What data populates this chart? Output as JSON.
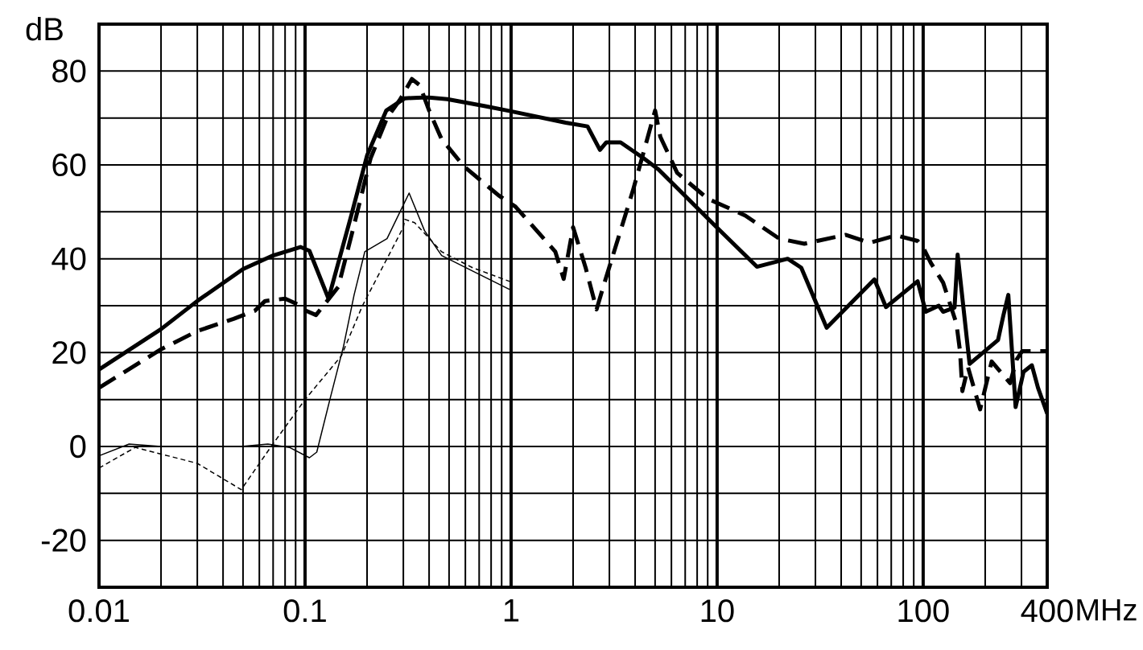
{
  "chart_data": {
    "type": "line",
    "ylabel": "dB",
    "xlabel": "MHz",
    "log": "x",
    "grid": true,
    "xlim": [
      0.01,
      400
    ],
    "ylim": [
      -30,
      90
    ],
    "xticks": [
      0.01,
      {
        "value": 0.02,
        "label": null
      },
      {
        "value": 0.03,
        "label": null
      },
      {
        "value": 0.04,
        "label": null
      },
      {
        "value": 0.05,
        "label": null
      },
      {
        "value": 0.06,
        "label": null
      },
      {
        "value": 0.07,
        "label": null
      },
      {
        "value": 0.08,
        "label": null
      },
      {
        "value": 0.09,
        "label": null
      },
      0.1,
      {
        "value": 0.2,
        "label": null
      },
      {
        "value": 0.3,
        "label": null
      },
      {
        "value": 0.4,
        "label": null
      },
      {
        "value": 0.5,
        "label": null
      },
      {
        "value": 0.6,
        "label": null
      },
      {
        "value": 0.7,
        "label": null
      },
      {
        "value": 0.8,
        "label": null
      },
      {
        "value": 0.9,
        "label": null
      },
      1,
      {
        "value": 2,
        "label": null
      },
      {
        "value": 3,
        "label": null
      },
      {
        "value": 4,
        "label": null
      },
      {
        "value": 5,
        "label": null
      },
      {
        "value": 6,
        "label": null
      },
      {
        "value": 7,
        "label": null
      },
      {
        "value": 8,
        "label": null
      },
      {
        "value": 9,
        "label": null
      },
      10,
      {
        "value": 20,
        "label": null
      },
      {
        "value": 30,
        "label": null
      },
      {
        "value": 40,
        "label": null
      },
      {
        "value": 50,
        "label": null
      },
      {
        "value": 60,
        "label": null
      },
      {
        "value": 70,
        "label": null
      },
      {
        "value": 80,
        "label": null
      },
      {
        "value": 90,
        "label": null
      },
      100,
      {
        "value": 200,
        "label": null
      },
      {
        "value": 300,
        "label": null
      },
      400
    ],
    "yticks": [
      {
        "value": -30,
        "label": null
      },
      -20,
      {
        "value": -10,
        "label": null
      },
      0,
      {
        "value": 10,
        "label": null
      },
      20,
      {
        "value": 30,
        "label": null
      },
      40,
      {
        "value": 50,
        "label": null
      },
      60,
      {
        "value": 70,
        "label": null
      },
      80,
      {
        "value": 90,
        "label": null
      }
    ],
    "series": [
      {
        "color": "#000000",
        "line_style": "solid",
        "x": [
          0.01,
          0.02,
          0.03,
          0.05,
          0.07,
          0.095,
          0.105,
          0.13,
          0.168,
          0.2,
          0.248,
          0.305,
          0.39,
          0.49,
          0.75,
          0.98,
          1.84,
          2.35,
          2.7,
          2.9,
          3.4,
          4.4,
          5.2,
          9.9,
          15.6,
          22,
          25.6,
          34,
          58,
          66,
          94,
          103,
          119,
          125,
          142,
          147,
          168,
          231,
          245,
          259,
          281,
          307,
          337,
          361,
          400
        ],
        "values": [
          16.4,
          25,
          31,
          37.8,
          40.7,
          42.5,
          41.7,
          31.5,
          49.4,
          62,
          71.6,
          74.2,
          74.4,
          74,
          72.5,
          71.5,
          69,
          68.2,
          63.2,
          64.8,
          64.8,
          61.4,
          59,
          46.8,
          38.3,
          40,
          38.1,
          25.3,
          35.6,
          29.7,
          35.2,
          28.7,
          30,
          28.7,
          29.6,
          40.9,
          17.6,
          22.7,
          27.9,
          32.3,
          8.4,
          15.9,
          17.3,
          12.5,
          7
        ]
      },
      {
        "color": "#000000",
        "line_style": "dashed",
        "x": [
          0.01,
          0.02,
          0.03,
          0.045,
          0.057,
          0.064,
          0.08,
          0.095,
          0.1,
          0.113,
          0.145,
          0.173,
          0.208,
          0.25,
          0.29,
          0.33,
          0.36,
          0.4,
          0.46,
          0.59,
          0.87,
          1.05,
          1.64,
          1.8,
          2.0,
          2.3,
          2.6,
          2.8,
          3.9,
          4.5,
          5.0,
          5.3,
          6.4,
          9.0,
          13.7,
          20,
          26.5,
          42,
          55,
          74,
          94,
          101,
          109,
          125,
          145,
          151,
          155,
          165,
          189,
          215,
          245,
          264,
          284,
          302,
          400
        ],
        "values": [
          12.5,
          20.7,
          24.6,
          27.2,
          28.9,
          31,
          31.5,
          30,
          29,
          28,
          34,
          47.2,
          61.4,
          70,
          74,
          78.3,
          77,
          71.6,
          65.5,
          59.7,
          53.5,
          51.1,
          41.5,
          35.7,
          46.7,
          38.1,
          29.2,
          34,
          54.5,
          64.3,
          71.6,
          66,
          58.3,
          52.8,
          49.2,
          44.3,
          43.2,
          45.1,
          43.4,
          45,
          43.8,
          42,
          39.1,
          34.9,
          26.2,
          20.3,
          11.8,
          16.9,
          7.9,
          18.1,
          15.2,
          13.5,
          18.5,
          20.3,
          20.3
        ]
      },
      {
        "color": "#000000",
        "line_style": "solid",
        "x": [
          0.01,
          0.014,
          0.02,
          0.049,
          0.066,
          0.084,
          0.105,
          0.114,
          0.132,
          0.154,
          0.173,
          0.195,
          0.25,
          0.32,
          0.38,
          0.46,
          0.65,
          0.98,
          1
        ],
        "values": [
          -2,
          0.5,
          0,
          0,
          0.5,
          -0.2,
          -2.4,
          -1.2,
          10,
          21.5,
          32.3,
          41.5,
          44.3,
          54,
          46,
          40.7,
          37.4,
          33.5,
          33.5
        ]
      },
      {
        "color": "#000000",
        "line_style": "dashed",
        "x": [
          0.01,
          0.015,
          0.03,
          0.038,
          0.049,
          0.068,
          0.1,
          0.15,
          0.19,
          0.3,
          0.305,
          0.34,
          0.46,
          0.65,
          0.98,
          1
        ],
        "values": [
          -4.6,
          -0.2,
          -3.6,
          -6.3,
          -9.2,
          -0.2,
          10,
          19.3,
          30,
          46.7,
          48.4,
          47.7,
          41.5,
          38.1,
          35.2,
          35
        ]
      }
    ]
  }
}
